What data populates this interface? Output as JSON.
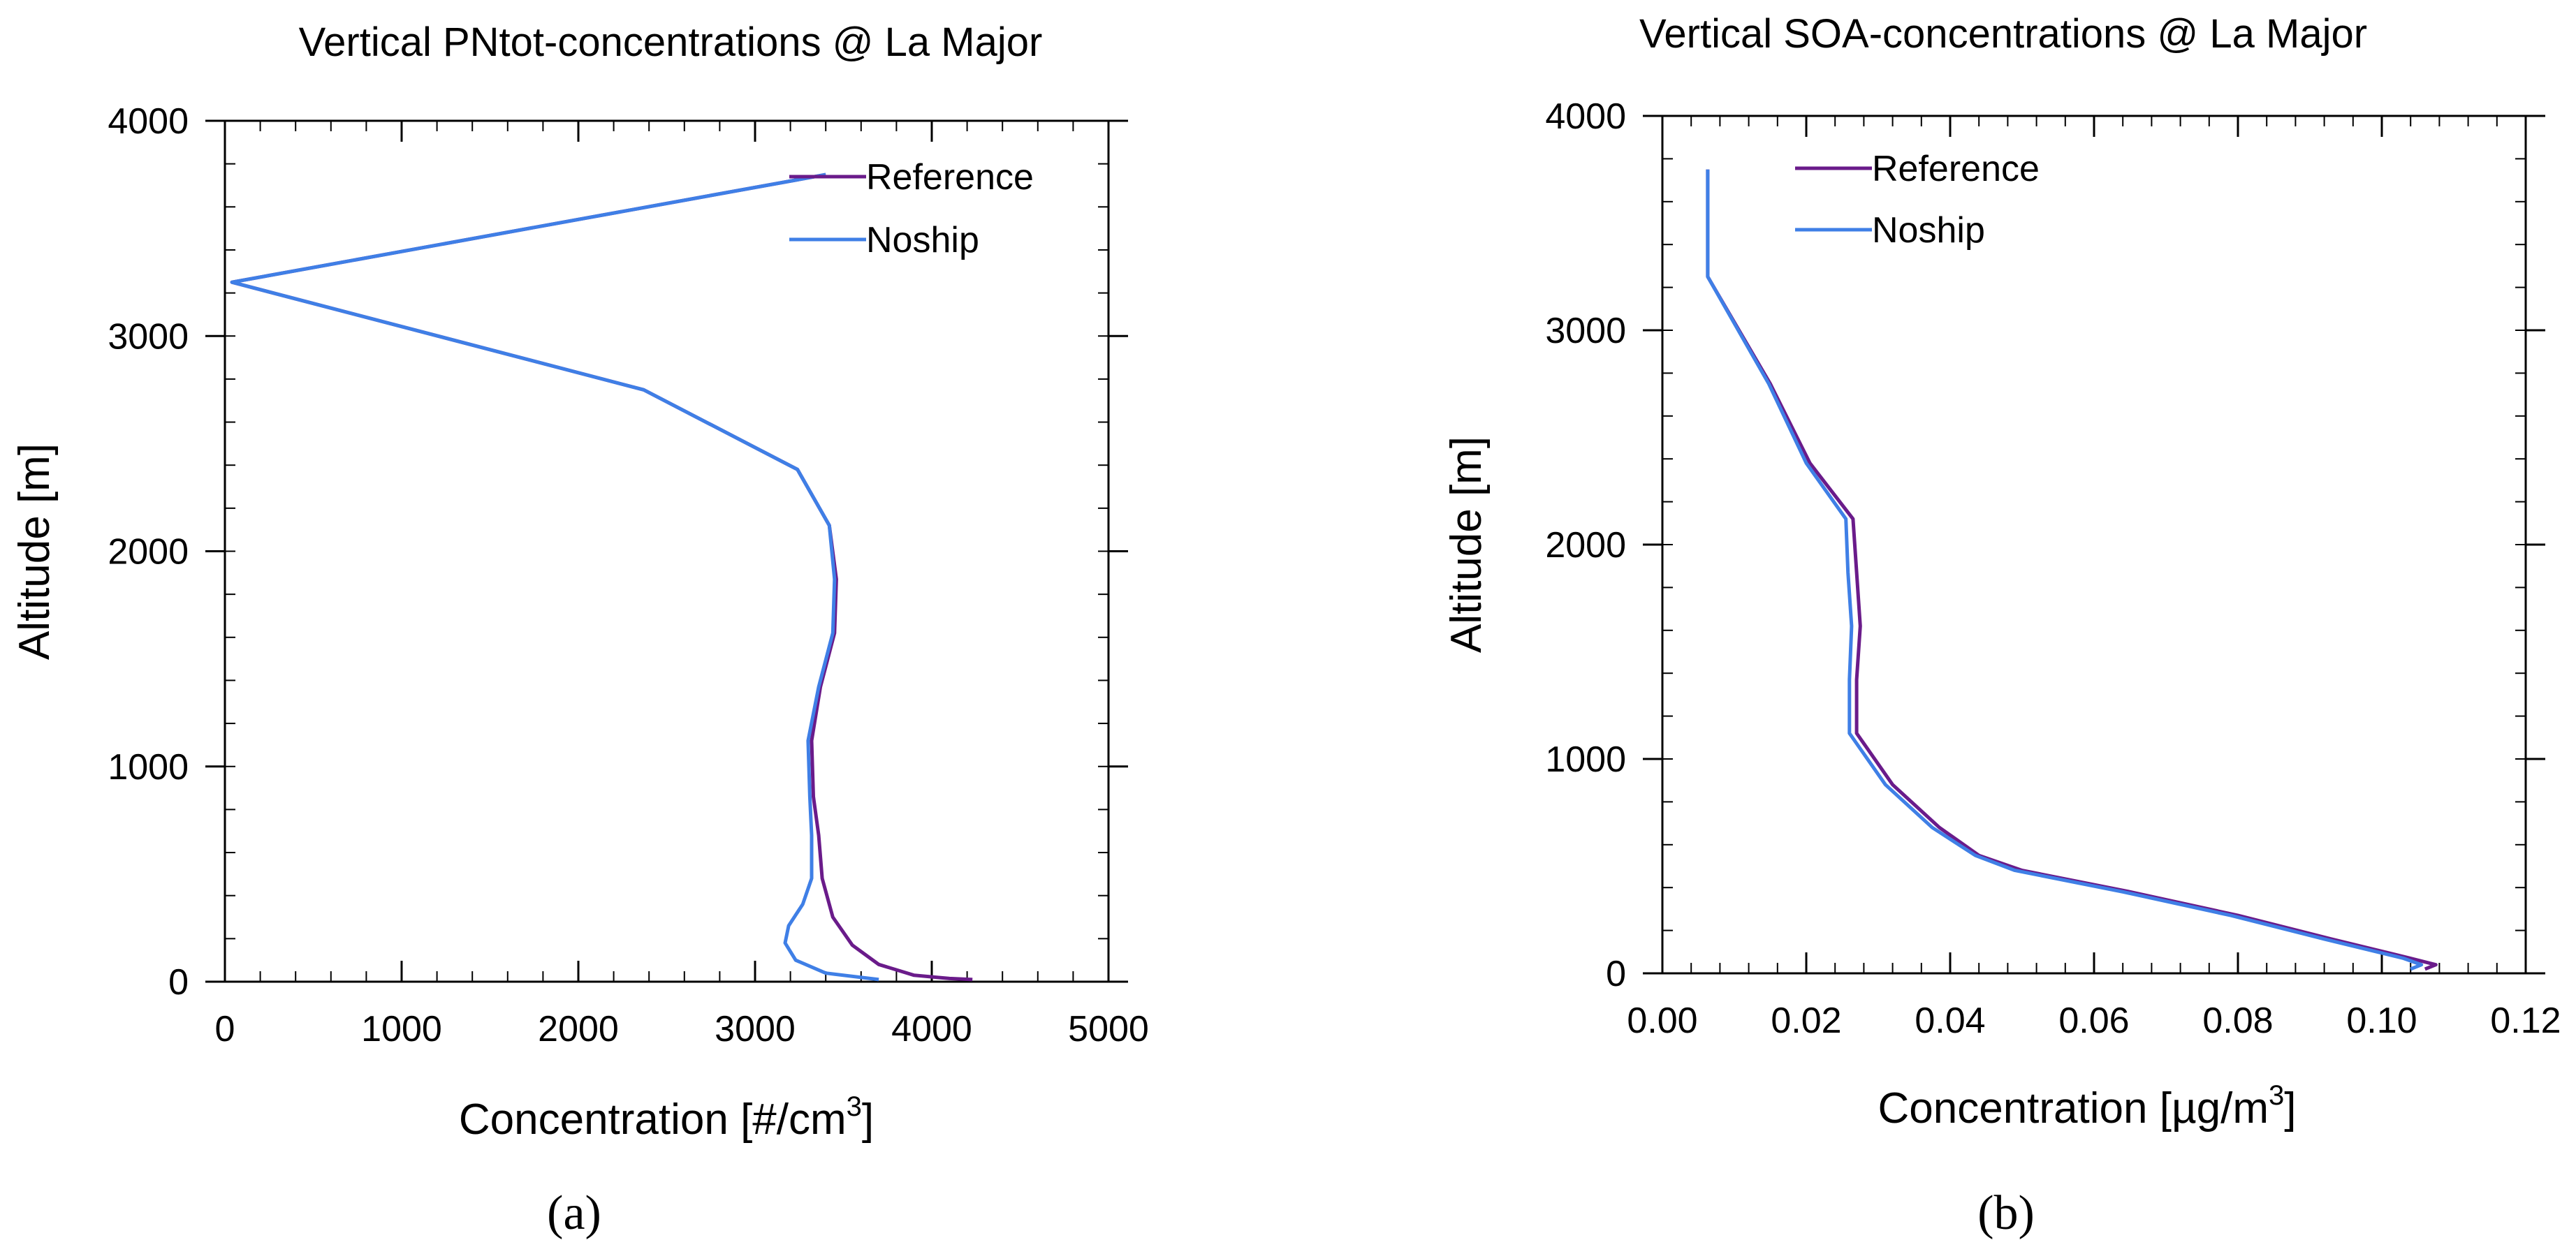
{
  "figure": {
    "caption_a": "(a)",
    "caption_b": "(b)",
    "caption_a_letter": "a",
    "caption_b_letter": "b"
  },
  "chart_data": [
    {
      "id": "a",
      "type": "line",
      "title": "Vertical PNtot-concentrations @ La Major",
      "xlabel": "Concentration [#/cm",
      "xlabel_sup": "3",
      "xlabel_end": "]",
      "ylabel": "Altitude [m]",
      "xlim": [
        0,
        5000
      ],
      "ylim": [
        0,
        4000
      ],
      "xticks": [
        0,
        1000,
        2000,
        3000,
        4000,
        5000
      ],
      "xtick_labels": [
        "0",
        "1000",
        "2000",
        "3000",
        "4000",
        "5000"
      ],
      "yticks": [
        0,
        1000,
        2000,
        3000,
        4000
      ],
      "ytick_labels": [
        "0",
        "1000",
        "2000",
        "3000",
        "4000"
      ],
      "x_minor_step": 200,
      "y_minor_step": 200,
      "legend_position": "top-right",
      "series": [
        {
          "name": "Reference",
          "color": "#6a1b8a",
          "points": [
            [
              3400,
              3750
            ],
            [
              40,
              3250
            ],
            [
              2370,
              2750
            ],
            [
              3240,
              2380
            ],
            [
              3420,
              2120
            ],
            [
              3460,
              1870
            ],
            [
              3450,
              1620
            ],
            [
              3370,
              1370
            ],
            [
              3320,
              1120
            ],
            [
              3330,
              860
            ],
            [
              3360,
              680
            ],
            [
              3380,
              480
            ],
            [
              3440,
              300
            ],
            [
              3550,
              170
            ],
            [
              3700,
              80
            ],
            [
              3900,
              30
            ],
            [
              4100,
              15
            ],
            [
              4230,
              10
            ]
          ]
        },
        {
          "name": "Noship",
          "color": "#3f7fe6",
          "points": [
            [
              3400,
              3750
            ],
            [
              40,
              3250
            ],
            [
              2370,
              2750
            ],
            [
              3240,
              2380
            ],
            [
              3420,
              2120
            ],
            [
              3450,
              1870
            ],
            [
              3440,
              1620
            ],
            [
              3360,
              1370
            ],
            [
              3300,
              1120
            ],
            [
              3310,
              860
            ],
            [
              3320,
              680
            ],
            [
              3320,
              480
            ],
            [
              3270,
              360
            ],
            [
              3190,
              260
            ],
            [
              3170,
              180
            ],
            [
              3230,
              100
            ],
            [
              3400,
              40
            ],
            [
              3700,
              10
            ]
          ]
        }
      ]
    },
    {
      "id": "b",
      "type": "line",
      "title": "Vertical SOA-concentrations @ La Major",
      "xlabel": "Concentration [µg/m",
      "xlabel_sup": "3",
      "xlabel_end": "]",
      "ylabel": "Altitude [m]",
      "xlim": [
        0.0,
        0.12
      ],
      "ylim": [
        0,
        4000
      ],
      "xticks": [
        0.0,
        0.02,
        0.04,
        0.06,
        0.08,
        0.1,
        0.12
      ],
      "xtick_labels": [
        "0.00",
        "0.02",
        "0.04",
        "0.06",
        "0.08",
        "0.10",
        "0.12"
      ],
      "yticks": [
        0,
        1000,
        2000,
        3000,
        4000
      ],
      "ytick_labels": [
        "0",
        "1000",
        "2000",
        "3000",
        "4000"
      ],
      "x_minor_step": 0.004,
      "y_minor_step": 200,
      "legend_position": "top-left",
      "series": [
        {
          "name": "Reference",
          "color": "#6a1b8a",
          "points": [
            [
              0.0063,
              3750
            ],
            [
              0.0063,
              3250
            ],
            [
              0.015,
              2750
            ],
            [
              0.0205,
              2380
            ],
            [
              0.0265,
              2120
            ],
            [
              0.027,
              1870
            ],
            [
              0.0275,
              1620
            ],
            [
              0.027,
              1370
            ],
            [
              0.027,
              1120
            ],
            [
              0.032,
              880
            ],
            [
              0.0385,
              680
            ],
            [
              0.044,
              550
            ],
            [
              0.05,
              480
            ],
            [
              0.065,
              380
            ],
            [
              0.08,
              270
            ],
            [
              0.093,
              160
            ],
            [
              0.104,
              70
            ],
            [
              0.1075,
              40
            ],
            [
              0.106,
              20
            ]
          ]
        },
        {
          "name": "Noship",
          "color": "#3f7fe6",
          "points": [
            [
              0.0063,
              3750
            ],
            [
              0.0063,
              3250
            ],
            [
              0.0148,
              2750
            ],
            [
              0.02,
              2380
            ],
            [
              0.0255,
              2120
            ],
            [
              0.0258,
              1870
            ],
            [
              0.0263,
              1620
            ],
            [
              0.026,
              1370
            ],
            [
              0.026,
              1120
            ],
            [
              0.031,
              880
            ],
            [
              0.0375,
              680
            ],
            [
              0.0435,
              550
            ],
            [
              0.049,
              480
            ],
            [
              0.064,
              380
            ],
            [
              0.079,
              270
            ],
            [
              0.092,
              160
            ],
            [
              0.103,
              70
            ],
            [
              0.1055,
              40
            ],
            [
              0.104,
              20
            ]
          ]
        }
      ]
    }
  ]
}
